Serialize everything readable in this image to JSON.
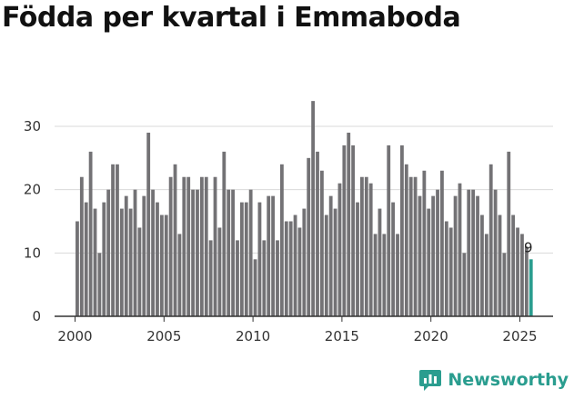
{
  "chart_data": {
    "type": "bar",
    "title": "Födda per kvartal i Emmaboda",
    "xlabel": "",
    "ylabel": "",
    "ylim": [
      0,
      35
    ],
    "y_ticks": [
      0,
      10,
      20,
      30
    ],
    "x_tick_labels": [
      "2000",
      "2005",
      "2010",
      "2015",
      "2020",
      "2025"
    ],
    "x_tick_years": [
      2000,
      2005,
      2010,
      2015,
      2020,
      2025
    ],
    "start_year": 2000,
    "start_quarter": 1,
    "grid": true,
    "colors": {
      "bar": "#737275",
      "highlight": "#2a9d8f",
      "grid": "#d9d9d9",
      "axis": "#333333"
    },
    "highlight_last": true,
    "last_label": "9",
    "values": [
      15,
      22,
      18,
      26,
      17,
      10,
      18,
      20,
      24,
      24,
      17,
      19,
      17,
      20,
      14,
      19,
      29,
      20,
      18,
      16,
      16,
      22,
      24,
      13,
      22,
      22,
      20,
      20,
      22,
      22,
      12,
      22,
      14,
      26,
      20,
      20,
      12,
      18,
      18,
      20,
      9,
      18,
      12,
      19,
      19,
      12,
      24,
      15,
      15,
      16,
      14,
      17,
      25,
      34,
      26,
      23,
      16,
      19,
      17,
      21,
      27,
      29,
      27,
      18,
      22,
      22,
      21,
      13,
      17,
      13,
      27,
      18,
      13,
      27,
      24,
      22,
      22,
      19,
      23,
      17,
      19,
      20,
      23,
      15,
      14,
      19,
      21,
      10,
      20,
      20,
      19,
      16,
      13,
      24,
      20,
      16,
      10,
      26,
      16,
      14,
      13,
      11,
      9
    ]
  },
  "brand": {
    "name": "Newsworthy",
    "icon": "newsworthy-logo-icon"
  }
}
